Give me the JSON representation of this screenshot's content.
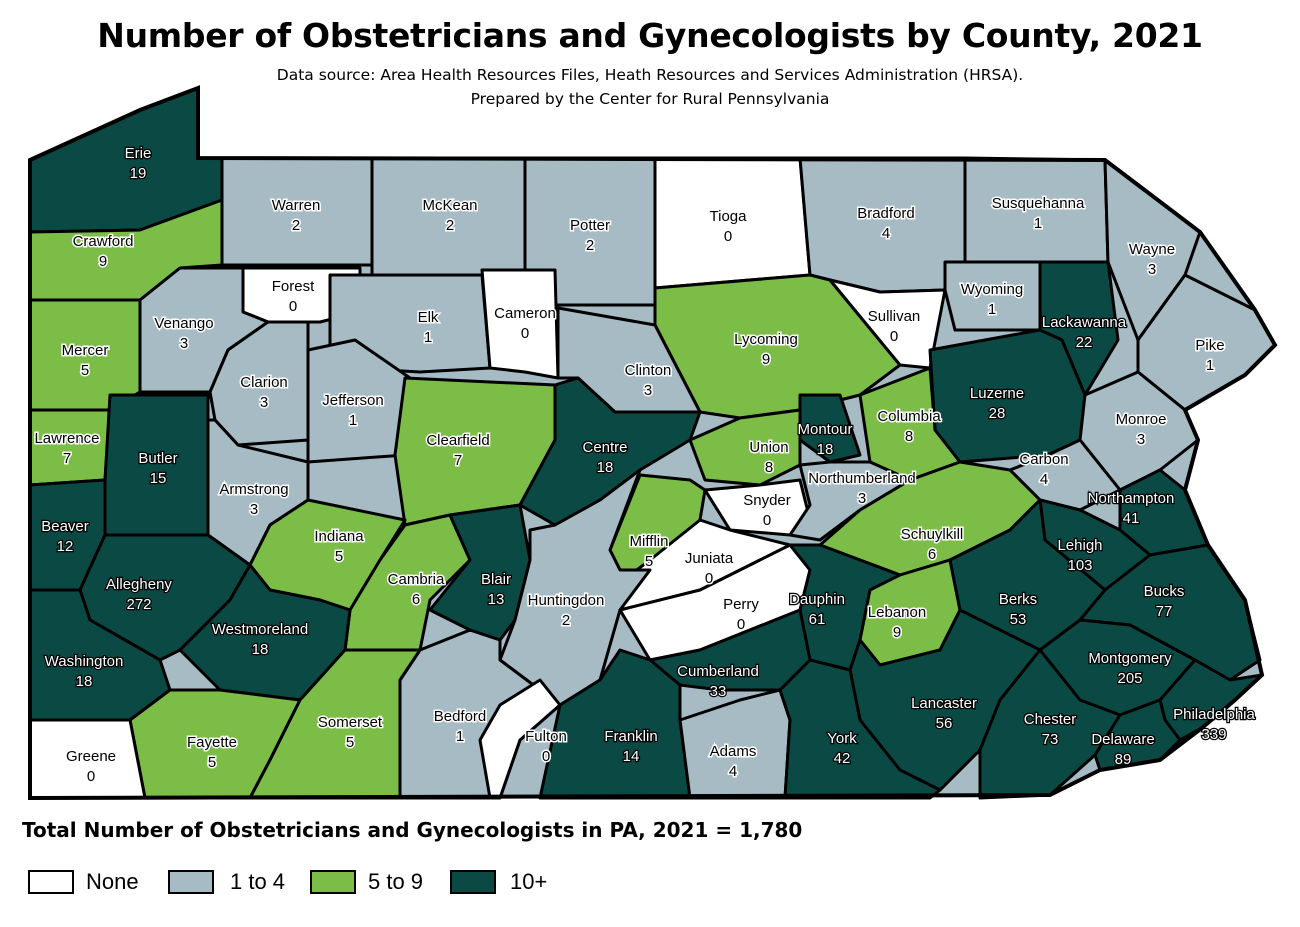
{
  "title": "Number of Obstetricians and Gynecologists by County, 2021",
  "subtitle_line1": "Data source: Area Health Resources Files, Heath Resources and Services Administration (HRSA).",
  "subtitle_line2": "Prepared by the Center for Rural Pennsylvania",
  "total_text": "Total Number of Obstetricians and Gynecologists in PA, 2021 = 1,780",
  "colors": {
    "none": "#ffffff",
    "low": "#a7bbc5",
    "mid": "#7bbd46",
    "high": "#0b4a44",
    "border": "#000000"
  },
  "legend": [
    {
      "label": "None",
      "color": "#ffffff"
    },
    {
      "label": "1 to 4",
      "color": "#a7bbc5"
    },
    {
      "label": "5 to 9",
      "color": "#7bbd46"
    },
    {
      "label": "10+",
      "color": "#0b4a44"
    }
  ],
  "counties": [
    {
      "name": "Erie",
      "value": "19",
      "cls": "high"
    },
    {
      "name": "Warren",
      "value": "2",
      "cls": "low"
    },
    {
      "name": "McKean",
      "value": "2",
      "cls": "low"
    },
    {
      "name": "Potter",
      "value": "2",
      "cls": "low"
    },
    {
      "name": "Tioga",
      "value": "0",
      "cls": "none"
    },
    {
      "name": "Bradford",
      "value": "4",
      "cls": "low"
    },
    {
      "name": "Susquehanna",
      "value": "1",
      "cls": "low"
    },
    {
      "name": "Wayne",
      "value": "3",
      "cls": "low"
    },
    {
      "name": "Crawford",
      "value": "9",
      "cls": "mid"
    },
    {
      "name": "Forest",
      "value": "0",
      "cls": "none"
    },
    {
      "name": "Venango",
      "value": "3",
      "cls": "low"
    },
    {
      "name": "Elk",
      "value": "1",
      "cls": "low"
    },
    {
      "name": "Cameron",
      "value": "0",
      "cls": "none"
    },
    {
      "name": "Lycoming",
      "value": "9",
      "cls": "mid"
    },
    {
      "name": "Sullivan",
      "value": "0",
      "cls": "none"
    },
    {
      "name": "Wyoming",
      "value": "1",
      "cls": "low"
    },
    {
      "name": "Lackawanna",
      "value": "22",
      "cls": "high"
    },
    {
      "name": "Pike",
      "value": "1",
      "cls": "low"
    },
    {
      "name": "Mercer",
      "value": "5",
      "cls": "mid"
    },
    {
      "name": "Clarion",
      "value": "3",
      "cls": "low"
    },
    {
      "name": "Jefferson",
      "value": "1",
      "cls": "low"
    },
    {
      "name": "Clinton",
      "value": "3",
      "cls": "low"
    },
    {
      "name": "Luzerne",
      "value": "28",
      "cls": "high"
    },
    {
      "name": "Lawrence",
      "value": "7",
      "cls": "mid"
    },
    {
      "name": "Butler",
      "value": "15",
      "cls": "high"
    },
    {
      "name": "Clearfield",
      "value": "7",
      "cls": "mid"
    },
    {
      "name": "Centre",
      "value": "18",
      "cls": "high"
    },
    {
      "name": "Union",
      "value": "8",
      "cls": "mid"
    },
    {
      "name": "Montour",
      "value": "18",
      "cls": "high"
    },
    {
      "name": "Columbia",
      "value": "8",
      "cls": "mid"
    },
    {
      "name": "Monroe",
      "value": "3",
      "cls": "low"
    },
    {
      "name": "Carbon",
      "value": "4",
      "cls": "low"
    },
    {
      "name": "Armstrong",
      "value": "3",
      "cls": "low"
    },
    {
      "name": "Snyder",
      "value": "0",
      "cls": "none"
    },
    {
      "name": "Northumberland",
      "value": "3",
      "cls": "low"
    },
    {
      "name": "Northampton",
      "value": "41",
      "cls": "high"
    },
    {
      "name": "Beaver",
      "value": "12",
      "cls": "high"
    },
    {
      "name": "Indiana",
      "value": "5",
      "cls": "mid"
    },
    {
      "name": "Mifflin",
      "value": "5",
      "cls": "mid"
    },
    {
      "name": "Juniata",
      "value": "0",
      "cls": "none"
    },
    {
      "name": "Schuylkill",
      "value": "6",
      "cls": "mid"
    },
    {
      "name": "Lehigh",
      "value": "103",
      "cls": "high"
    },
    {
      "name": "Allegheny",
      "value": "272",
      "cls": "high"
    },
    {
      "name": "Cambria",
      "value": "6",
      "cls": "mid"
    },
    {
      "name": "Blair",
      "value": "13",
      "cls": "high"
    },
    {
      "name": "Huntingdon",
      "value": "2",
      "cls": "low"
    },
    {
      "name": "Perry",
      "value": "0",
      "cls": "none"
    },
    {
      "name": "Dauphin",
      "value": "61",
      "cls": "high"
    },
    {
      "name": "Lebanon",
      "value": "9",
      "cls": "mid"
    },
    {
      "name": "Berks",
      "value": "53",
      "cls": "high"
    },
    {
      "name": "Bucks",
      "value": "77",
      "cls": "high"
    },
    {
      "name": "Westmoreland",
      "value": "18",
      "cls": "high"
    },
    {
      "name": "Washington",
      "value": "18",
      "cls": "high"
    },
    {
      "name": "Cumberland",
      "value": "33",
      "cls": "high"
    },
    {
      "name": "Montgomery",
      "value": "205",
      "cls": "high"
    },
    {
      "name": "Lancaster",
      "value": "56",
      "cls": "high"
    },
    {
      "name": "Philadelphia",
      "value": "339",
      "cls": "high"
    },
    {
      "name": "Bedford",
      "value": "1",
      "cls": "low"
    },
    {
      "name": "Fulton",
      "value": "0",
      "cls": "none"
    },
    {
      "name": "Franklin",
      "value": "14",
      "cls": "high"
    },
    {
      "name": "Adams",
      "value": "4",
      "cls": "low"
    },
    {
      "name": "York",
      "value": "42",
      "cls": "high"
    },
    {
      "name": "Chester",
      "value": "73",
      "cls": "high"
    },
    {
      "name": "Delaware",
      "value": "89",
      "cls": "high"
    },
    {
      "name": "Fayette",
      "value": "5",
      "cls": "mid"
    },
    {
      "name": "Somerset",
      "value": "5",
      "cls": "mid"
    },
    {
      "name": "Greene",
      "value": "0",
      "cls": "none"
    }
  ]
}
